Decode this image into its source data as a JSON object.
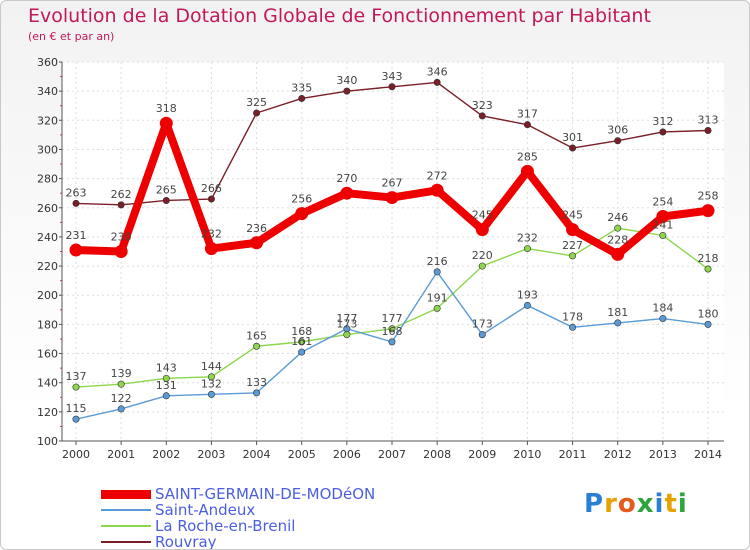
{
  "title": "Evolution de la Dotation Globale de Fonctionnement par Habitant",
  "subtitle": "(en € et par an)",
  "logo": {
    "letters": [
      {
        "ch": "P",
        "color": "#2a7fd4"
      },
      {
        "ch": "r",
        "color": "#e6a200"
      },
      {
        "ch": "o",
        "color": "#e65a1e"
      },
      {
        "ch": "x",
        "color": "#2aa63a"
      },
      {
        "ch": "i",
        "color": "#2a7fd4"
      },
      {
        "ch": "t",
        "color": "#e6a200"
      },
      {
        "ch": "i",
        "color": "#2aa63a"
      }
    ]
  },
  "chart_data": {
    "type": "line",
    "x": [
      "2000",
      "2001",
      "2002",
      "2003",
      "2004",
      "2005",
      "2006",
      "2007",
      "2008",
      "2009",
      "2010",
      "2011",
      "2012",
      "2013",
      "2014"
    ],
    "ylim": [
      100,
      360
    ],
    "yticks": [
      100,
      120,
      140,
      160,
      180,
      200,
      220,
      240,
      260,
      280,
      300,
      320,
      340,
      360
    ],
    "grid": true,
    "legend_position": "bottom-left",
    "series": [
      {
        "name": "SAINT-GERMAIN-DE-MODéON",
        "color": "#ee0000",
        "values": [
          231,
          230,
          318,
          232,
          236,
          256,
          270,
          267,
          272,
          245,
          285,
          245,
          228,
          254,
          258
        ],
        "labels": [
          "231",
          "230",
          "318",
          "232",
          "236",
          "256",
          "270",
          "267",
          "272",
          "245",
          "285",
          "245",
          "228",
          "254",
          "258"
        ]
      },
      {
        "name": "Saint-Andeux",
        "color": "#5b9bd5",
        "values": [
          115,
          122,
          131,
          132,
          133,
          161,
          177,
          168,
          216,
          173,
          193,
          178,
          181,
          184,
          180
        ],
        "labels": [
          "115",
          "122",
          "131",
          "132",
          "133",
          "161",
          "177",
          "168",
          "216",
          "173",
          "193",
          "178",
          "181",
          "184",
          "180"
        ]
      },
      {
        "name": "La Roche-en-Brenil",
        "color": "#8ed64d",
        "values": [
          137,
          139,
          143,
          144,
          165,
          168,
          173,
          177,
          191,
          220,
          232,
          227,
          246,
          241,
          218
        ],
        "labels": [
          "137",
          "139",
          "143",
          "144",
          "165",
          "168",
          "173",
          "177",
          "191",
          "220",
          "232",
          "227",
          "246",
          "241",
          "218"
        ]
      },
      {
        "name": "Rouvray",
        "color": "#7a1f28",
        "values": [
          263,
          262,
          265,
          266,
          325,
          335,
          340,
          343,
          346,
          323,
          317,
          301,
          306,
          312,
          313
        ],
        "labels": [
          "263",
          "262",
          "265",
          "266",
          "325",
          "335",
          "340",
          "343",
          "346",
          "323",
          "317",
          "301",
          "306",
          "312",
          "313"
        ]
      }
    ]
  }
}
